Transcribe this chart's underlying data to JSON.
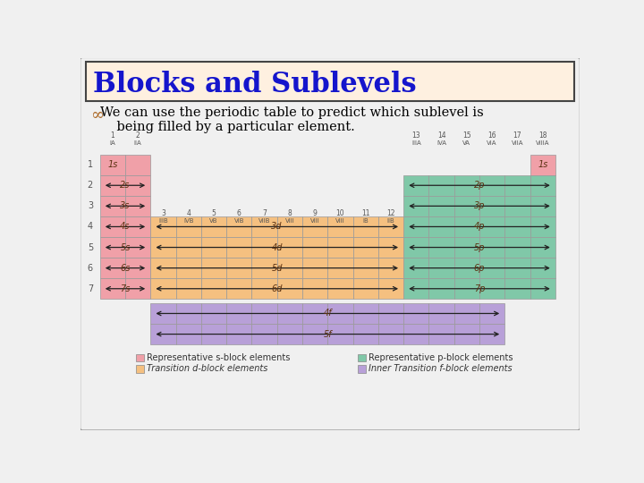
{
  "title": "Blocks and Sublevels",
  "bg_color": "#f0f0f0",
  "title_box_bg": "#fef0e0",
  "title_text_color": "#1515cc",
  "s_block_color": "#f0a0a8",
  "d_block_color": "#f5c080",
  "p_block_color": "#80c8a8",
  "f_block_color": "#b8a0d8",
  "arrow_color": "#222222",
  "label_color": "#5a3010",
  "period_label_color": "#555555",
  "group_label_color": "#555555",
  "legend": {
    "s_label": "Representative s-block elements",
    "d_label": "Transition d-block elements",
    "p_label": "Representative p-block elements",
    "f_label": "Inner Transition f-block elements"
  }
}
